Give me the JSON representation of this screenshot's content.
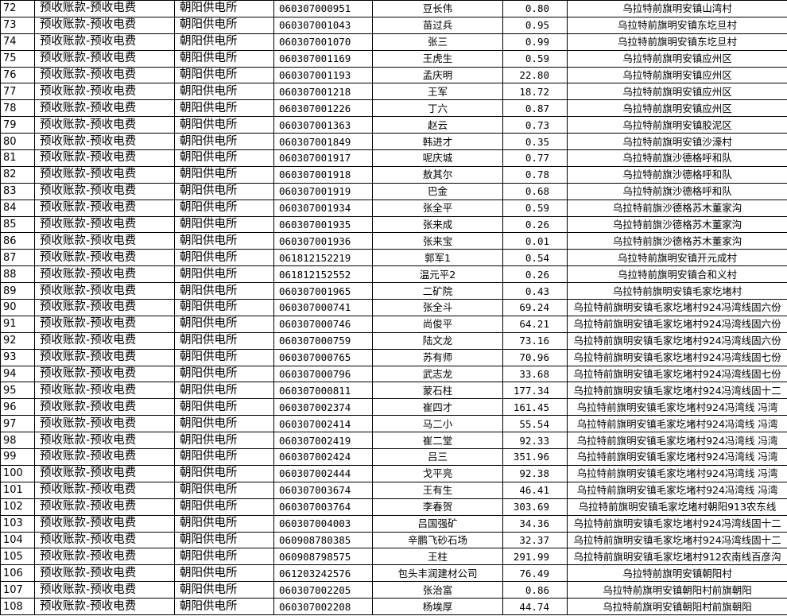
{
  "table": {
    "rows": [
      [
        "72",
        "预收账款-预收电费",
        "朝阳供电所",
        "060307000951",
        "豆长伟",
        "0.80",
        "乌拉特前旗明安镇山湾村"
      ],
      [
        "73",
        "预收账款-预收电费",
        "朝阳供电所",
        "060307001043",
        "苗过兵",
        "0.95",
        "乌拉特前旗明安镇东圪旦村"
      ],
      [
        "74",
        "预收账款-预收电费",
        "朝阳供电所",
        "060307001070",
        "张三",
        "0.99",
        "乌拉特前旗明安镇东圪旦村"
      ],
      [
        "75",
        "预收账款-预收电费",
        "朝阳供电所",
        "060307001169",
        "王虎生",
        "0.59",
        "乌拉特前旗明安镇应州区"
      ],
      [
        "76",
        "预收账款-预收电费",
        "朝阳供电所",
        "060307001193",
        "孟庆明",
        "22.80",
        "乌拉特前旗明安镇应州区"
      ],
      [
        "77",
        "预收账款-预收电费",
        "朝阳供电所",
        "060307001218",
        "王军",
        "18.72",
        "乌拉特前旗明安镇应州区"
      ],
      [
        "78",
        "预收账款-预收电费",
        "朝阳供电所",
        "060307001226",
        "丁六",
        "0.87",
        "乌拉特前旗明安镇应州区"
      ],
      [
        "79",
        "预收账款-预收电费",
        "朝阳供电所",
        "060307001363",
        "赵云",
        "0.73",
        "乌拉特前旗明安镇胶泥区"
      ],
      [
        "80",
        "预收账款-预收电费",
        "朝阳供电所",
        "060307001849",
        "韩进才",
        "0.35",
        "乌拉特前旗明安镇沙濠村"
      ],
      [
        "81",
        "预收账款-预收电费",
        "朝阳供电所",
        "060307001917",
        "呢庆城",
        "0.77",
        "乌拉特前旗沙德格呼和队"
      ],
      [
        "82",
        "预收账款-预收电费",
        "朝阳供电所",
        "060307001918",
        "敖其尔",
        "0.78",
        "乌拉特前旗沙德格呼和队"
      ],
      [
        "83",
        "预收账款-预收电费",
        "朝阳供电所",
        "060307001919",
        "巴金",
        "0.68",
        "乌拉特前旗沙德格呼和队"
      ],
      [
        "84",
        "预收账款-预收电费",
        "朝阳供电所",
        "060307001934",
        "张全平",
        "0.59",
        "乌拉特前旗沙德格苏木董家沟"
      ],
      [
        "85",
        "预收账款-预收电费",
        "朝阳供电所",
        "060307001935",
        "张来成",
        "0.26",
        "乌拉特前旗沙德格苏木董家沟"
      ],
      [
        "86",
        "预收账款-预收电费",
        "朝阳供电所",
        "060307001936",
        "张来宝",
        "0.01",
        "乌拉特前旗沙德格苏木董家沟"
      ],
      [
        "87",
        "预收账款-预收电费",
        "朝阳供电所",
        "061812152219",
        "郭军1",
        "0.54",
        "乌拉特前旗明安镇开元成村"
      ],
      [
        "88",
        "预收账款-预收电费",
        "朝阳供电所",
        "061812152552",
        "温元平2",
        "0.26",
        "乌拉特前旗明安镇合和义村"
      ],
      [
        "89",
        "预收账款-预收电费",
        "朝阳供电所",
        "060307001965",
        "二矿院",
        "0.43",
        "乌拉特前旗明安镇毛家圪堵村"
      ],
      [
        "90",
        "预收账款-预收电费",
        "朝阳供电所",
        "060307000741",
        "张全斗",
        "69.24",
        "乌拉特前旗明安镇毛家圪堵村924冯湾线固六份"
      ],
      [
        "91",
        "预收账款-预收电费",
        "朝阳供电所",
        "060307000746",
        "尚俊平",
        "64.21",
        "乌拉特前旗明安镇毛家圪堵村924冯湾线固六份"
      ],
      [
        "92",
        "预收账款-预收电费",
        "朝阳供电所",
        "060307000759",
        "陆文龙",
        "73.16",
        "乌拉特前旗明安镇毛家圪堵村924冯湾线固六份"
      ],
      [
        "93",
        "预收账款-预收电费",
        "朝阳供电所",
        "060307000765",
        "苏有师",
        "70.96",
        "乌拉特前旗明安镇毛家圪堵村924冯湾线固七份"
      ],
      [
        "94",
        "预收账款-预收电费",
        "朝阳供电所",
        "060307000796",
        "武志龙",
        "33.68",
        "乌拉特前旗明安镇毛家圪堵村924冯湾线固七份"
      ],
      [
        "95",
        "预收账款-预收电费",
        "朝阳供电所",
        "060307000811",
        "蒙石柱",
        "177.34",
        "乌拉特前旗明安镇毛家圪堵村924冯湾线固十二"
      ],
      [
        "96",
        "预收账款-预收电费",
        "朝阳供电所",
        "060307002374",
        "崔四才",
        "161.45",
        "乌拉特前旗明安镇毛家圪堵村924冯湾线 冯湾"
      ],
      [
        "97",
        "预收账款-预收电费",
        "朝阳供电所",
        "060307002414",
        "马二小",
        "55.54",
        "乌拉特前旗明安镇毛家圪堵村924冯湾线 冯湾"
      ],
      [
        "98",
        "预收账款-预收电费",
        "朝阳供电所",
        "060307002419",
        "崔二堂",
        "92.33",
        "乌拉特前旗明安镇毛家圪堵村924冯湾线 冯湾"
      ],
      [
        "99",
        "预收账款-预收电费",
        "朝阳供电所",
        "060307002424",
        "吕三",
        "351.96",
        "乌拉特前旗明安镇毛家圪堵村924冯湾线 冯湾"
      ],
      [
        "100",
        "预收账款-预收电费",
        "朝阳供电所",
        "060307002444",
        "戈平亮",
        "92.38",
        "乌拉特前旗明安镇毛家圪堵村924冯湾线 冯湾"
      ],
      [
        "101",
        "预收账款-预收电费",
        "朝阳供电所",
        "060307003674",
        "王有生",
        "46.41",
        "乌拉特前旗明安镇毛家圪堵村924冯湾线 冯湾"
      ],
      [
        "102",
        "预收账款-预收电费",
        "朝阳供电所",
        "060307003764",
        "李春贺",
        "303.69",
        "乌拉特前旗明安镇毛家圪堵村朝阳913农东线"
      ],
      [
        "103",
        "预收账款-预收电费",
        "朝阳供电所",
        "060307004003",
        "吕国强矿",
        "34.36",
        "乌拉特前旗明安镇毛家圪堵村924冯湾线固十二"
      ],
      [
        "104",
        "预收账款-预收电费",
        "朝阳供电所",
        "060908780385",
        "辛鹏飞砂石场",
        "32.37",
        "乌拉特前旗明安镇毛家圪堵村924冯湾线固十二"
      ],
      [
        "105",
        "预收账款-预收电费",
        "朝阳供电所",
        "060908798575",
        "王柱",
        "291.99",
        "乌拉特前旗明安镇毛家圪堵村912农南线百彦沟"
      ],
      [
        "106",
        "预收账款-预收电费",
        "朝阳供电所",
        "061203242576",
        "包头丰润建材公司",
        "76.49",
        "乌拉特前旗明安镇朝阳村"
      ],
      [
        "107",
        "预收账款-预收电费",
        "朝阳供电所",
        "060307002205",
        "张治富",
        "0.86",
        "乌拉特前旗明安镇朝阳村前旗朝阳"
      ],
      [
        "108",
        "预收账款-预收电费",
        "朝阳供电所",
        "060307002208",
        "杨埃厚",
        "44.74",
        "乌拉特前旗明安镇朝阳村前旗朝阳"
      ]
    ]
  }
}
